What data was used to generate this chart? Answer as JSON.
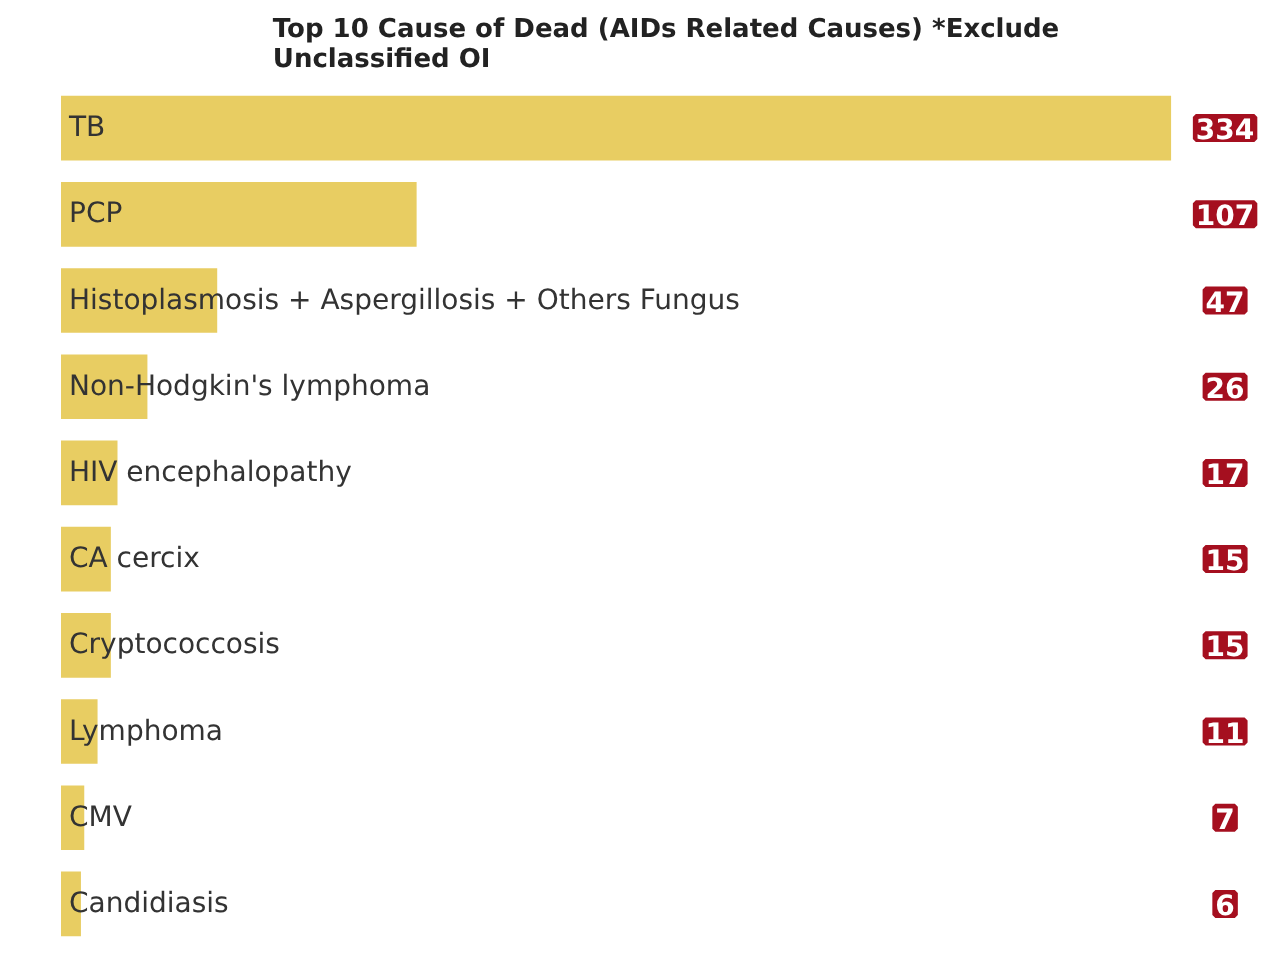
{
  "chart_data": {
    "type": "bar",
    "orientation": "horizontal",
    "title": "Top 10 Cause of Dead (AIDs Related Causes) *Exclude\nUnclassified OI",
    "categories": [
      "TB",
      "PCP",
      "Histoplasmosis + Aspergillosis + Others Fungus",
      "Non-Hodgkin's lymphoma",
      "HIV encephalopathy",
      "CA cercix",
      "Cryptococcosis",
      "Lymphoma",
      "CMV",
      "Candidiasis"
    ],
    "values": [
      334,
      107,
      47,
      26,
      17,
      15,
      15,
      11,
      7,
      6
    ],
    "color": "#e8cd62",
    "data_labels": true,
    "grid": false
  }
}
